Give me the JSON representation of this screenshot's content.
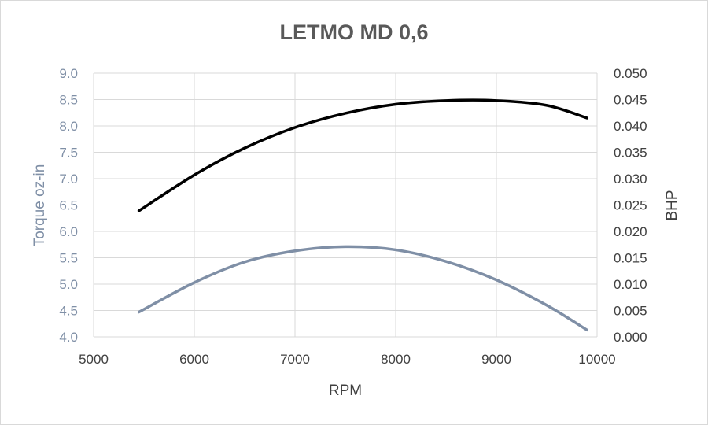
{
  "chart_data": {
    "type": "line",
    "title": "LETMO MD 0,6",
    "xlabel": "RPM",
    "ylabel_left": "Torque oz-in",
    "ylabel_right": "BHP",
    "xlim": [
      5000,
      10000
    ],
    "x_ticks": [
      "5000",
      "6000",
      "7000",
      "8000",
      "9000",
      "10000"
    ],
    "ylim_left": [
      4.0,
      9.0
    ],
    "y_ticks_left": [
      "4.0",
      "4.5",
      "5.0",
      "5.5",
      "6.0",
      "6.5",
      "7.0",
      "7.5",
      "8.0",
      "8.5",
      "9.0"
    ],
    "ylim_right": [
      0.0,
      0.05
    ],
    "y_ticks_right": [
      "0.000",
      "0.005",
      "0.010",
      "0.015",
      "0.020",
      "0.025",
      "0.030",
      "0.035",
      "0.040",
      "0.045",
      "0.050"
    ],
    "grid": true,
    "legend": "none",
    "series": [
      {
        "axis": "left",
        "color": "#7f8fa6",
        "x": [
          5450,
          6000,
          6500,
          7000,
          7500,
          8000,
          8500,
          9000,
          9500,
          9900
        ],
        "y": [
          4.47,
          5.03,
          5.42,
          5.63,
          5.71,
          5.65,
          5.43,
          5.08,
          4.6,
          4.13
        ]
      },
      {
        "axis": "right",
        "color": "#000000",
        "x": [
          5450,
          6000,
          6500,
          7000,
          7500,
          8000,
          8500,
          9000,
          9500,
          9900
        ],
        "y": [
          0.0239,
          0.0307,
          0.0358,
          0.0397,
          0.0424,
          0.0441,
          0.0448,
          0.0448,
          0.0439,
          0.0415
        ]
      }
    ]
  }
}
